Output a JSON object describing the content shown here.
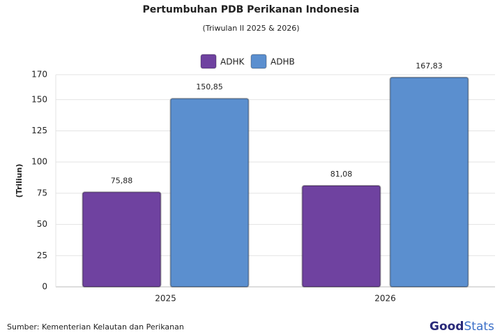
{
  "chart_data": {
    "type": "bar",
    "title": "Pertumbuhan PDB Perikanan Indonesia",
    "subtitle": "(Triwulan II 2025 & 2026)",
    "y_label": "(Triliun)",
    "categories": [
      "2025",
      "2026"
    ],
    "series": [
      {
        "name": "ADHK",
        "color": "#6f42a0",
        "values": [
          75.88,
          81.08
        ],
        "value_labels": [
          "75,88",
          "81,08"
        ]
      },
      {
        "name": "ADHB",
        "color": "#5b8fcf",
        "values": [
          150.85,
          167.83
        ],
        "value_labels": [
          "150,85",
          "167,83"
        ]
      }
    ],
    "ylim": [
      0,
      170
    ],
    "yticks": [
      0,
      25,
      50,
      75,
      100,
      125,
      150,
      170
    ],
    "grid": true,
    "legend": "top",
    "source": "Sumber: Kementerian Kelautan dan Perikanan",
    "logo": [
      "Good",
      "Stats"
    ]
  }
}
